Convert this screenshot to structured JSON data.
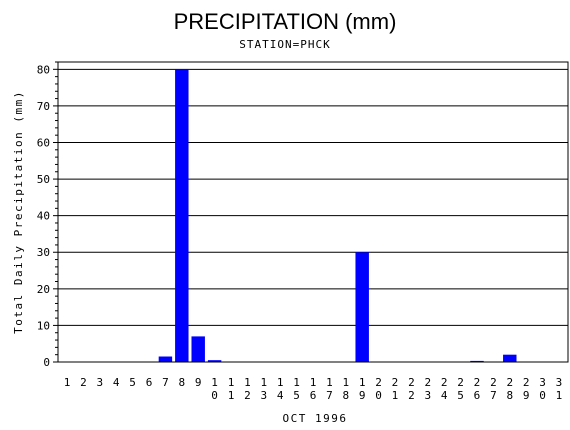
{
  "chart_data": {
    "type": "bar",
    "title": "PRECIPITATION (mm)",
    "subtitle": "STATION=PHCK",
    "xlabel": "OCT 1996",
    "ylabel": "Total Daily Precipitation (mm)",
    "categories": [
      "1",
      "2",
      "3",
      "4",
      "5",
      "6",
      "7",
      "8",
      "9",
      "10",
      "11",
      "12",
      "13",
      "14",
      "15",
      "16",
      "17",
      "18",
      "19",
      "20",
      "21",
      "22",
      "23",
      "24",
      "25",
      "26",
      "27",
      "28",
      "29",
      "30",
      "31"
    ],
    "values": [
      0,
      0,
      0,
      0,
      0,
      0,
      1.5,
      80,
      7,
      0.5,
      0,
      0,
      0,
      0,
      0,
      0,
      0,
      0,
      30,
      0,
      0,
      0,
      0,
      0,
      0,
      0.3,
      0,
      2,
      0,
      0,
      0
    ],
    "ylim": [
      0,
      82
    ],
    "yticks": [
      0,
      10,
      20,
      30,
      40,
      50,
      60,
      70,
      80
    ],
    "grid": true,
    "bar_color": "#0000ff"
  }
}
